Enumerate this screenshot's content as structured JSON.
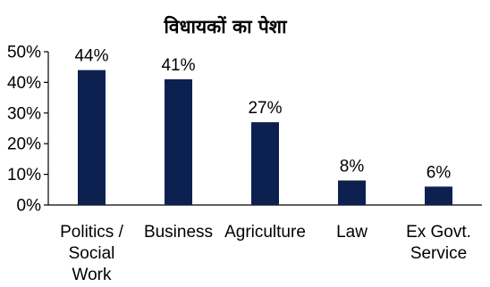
{
  "chart_data": {
    "type": "bar",
    "title": "विधायकों का पेशा",
    "xlabel": "",
    "ylabel": "",
    "ylim": [
      0,
      50
    ],
    "yticks": [
      "0%",
      "10%",
      "20%",
      "30%",
      "40%",
      "50%"
    ],
    "categories": [
      [
        "Politics /",
        "Social",
        "Work"
      ],
      [
        "Business"
      ],
      [
        "Agriculture"
      ],
      [
        "Law"
      ],
      [
        "Ex Govt.",
        "Service"
      ]
    ],
    "values": [
      44,
      41,
      27,
      8,
      6
    ],
    "data_labels": [
      "44%",
      "41%",
      "27%",
      "8%",
      "6%"
    ],
    "grid": false,
    "legend": "none",
    "bar_color": "#0d2150"
  }
}
